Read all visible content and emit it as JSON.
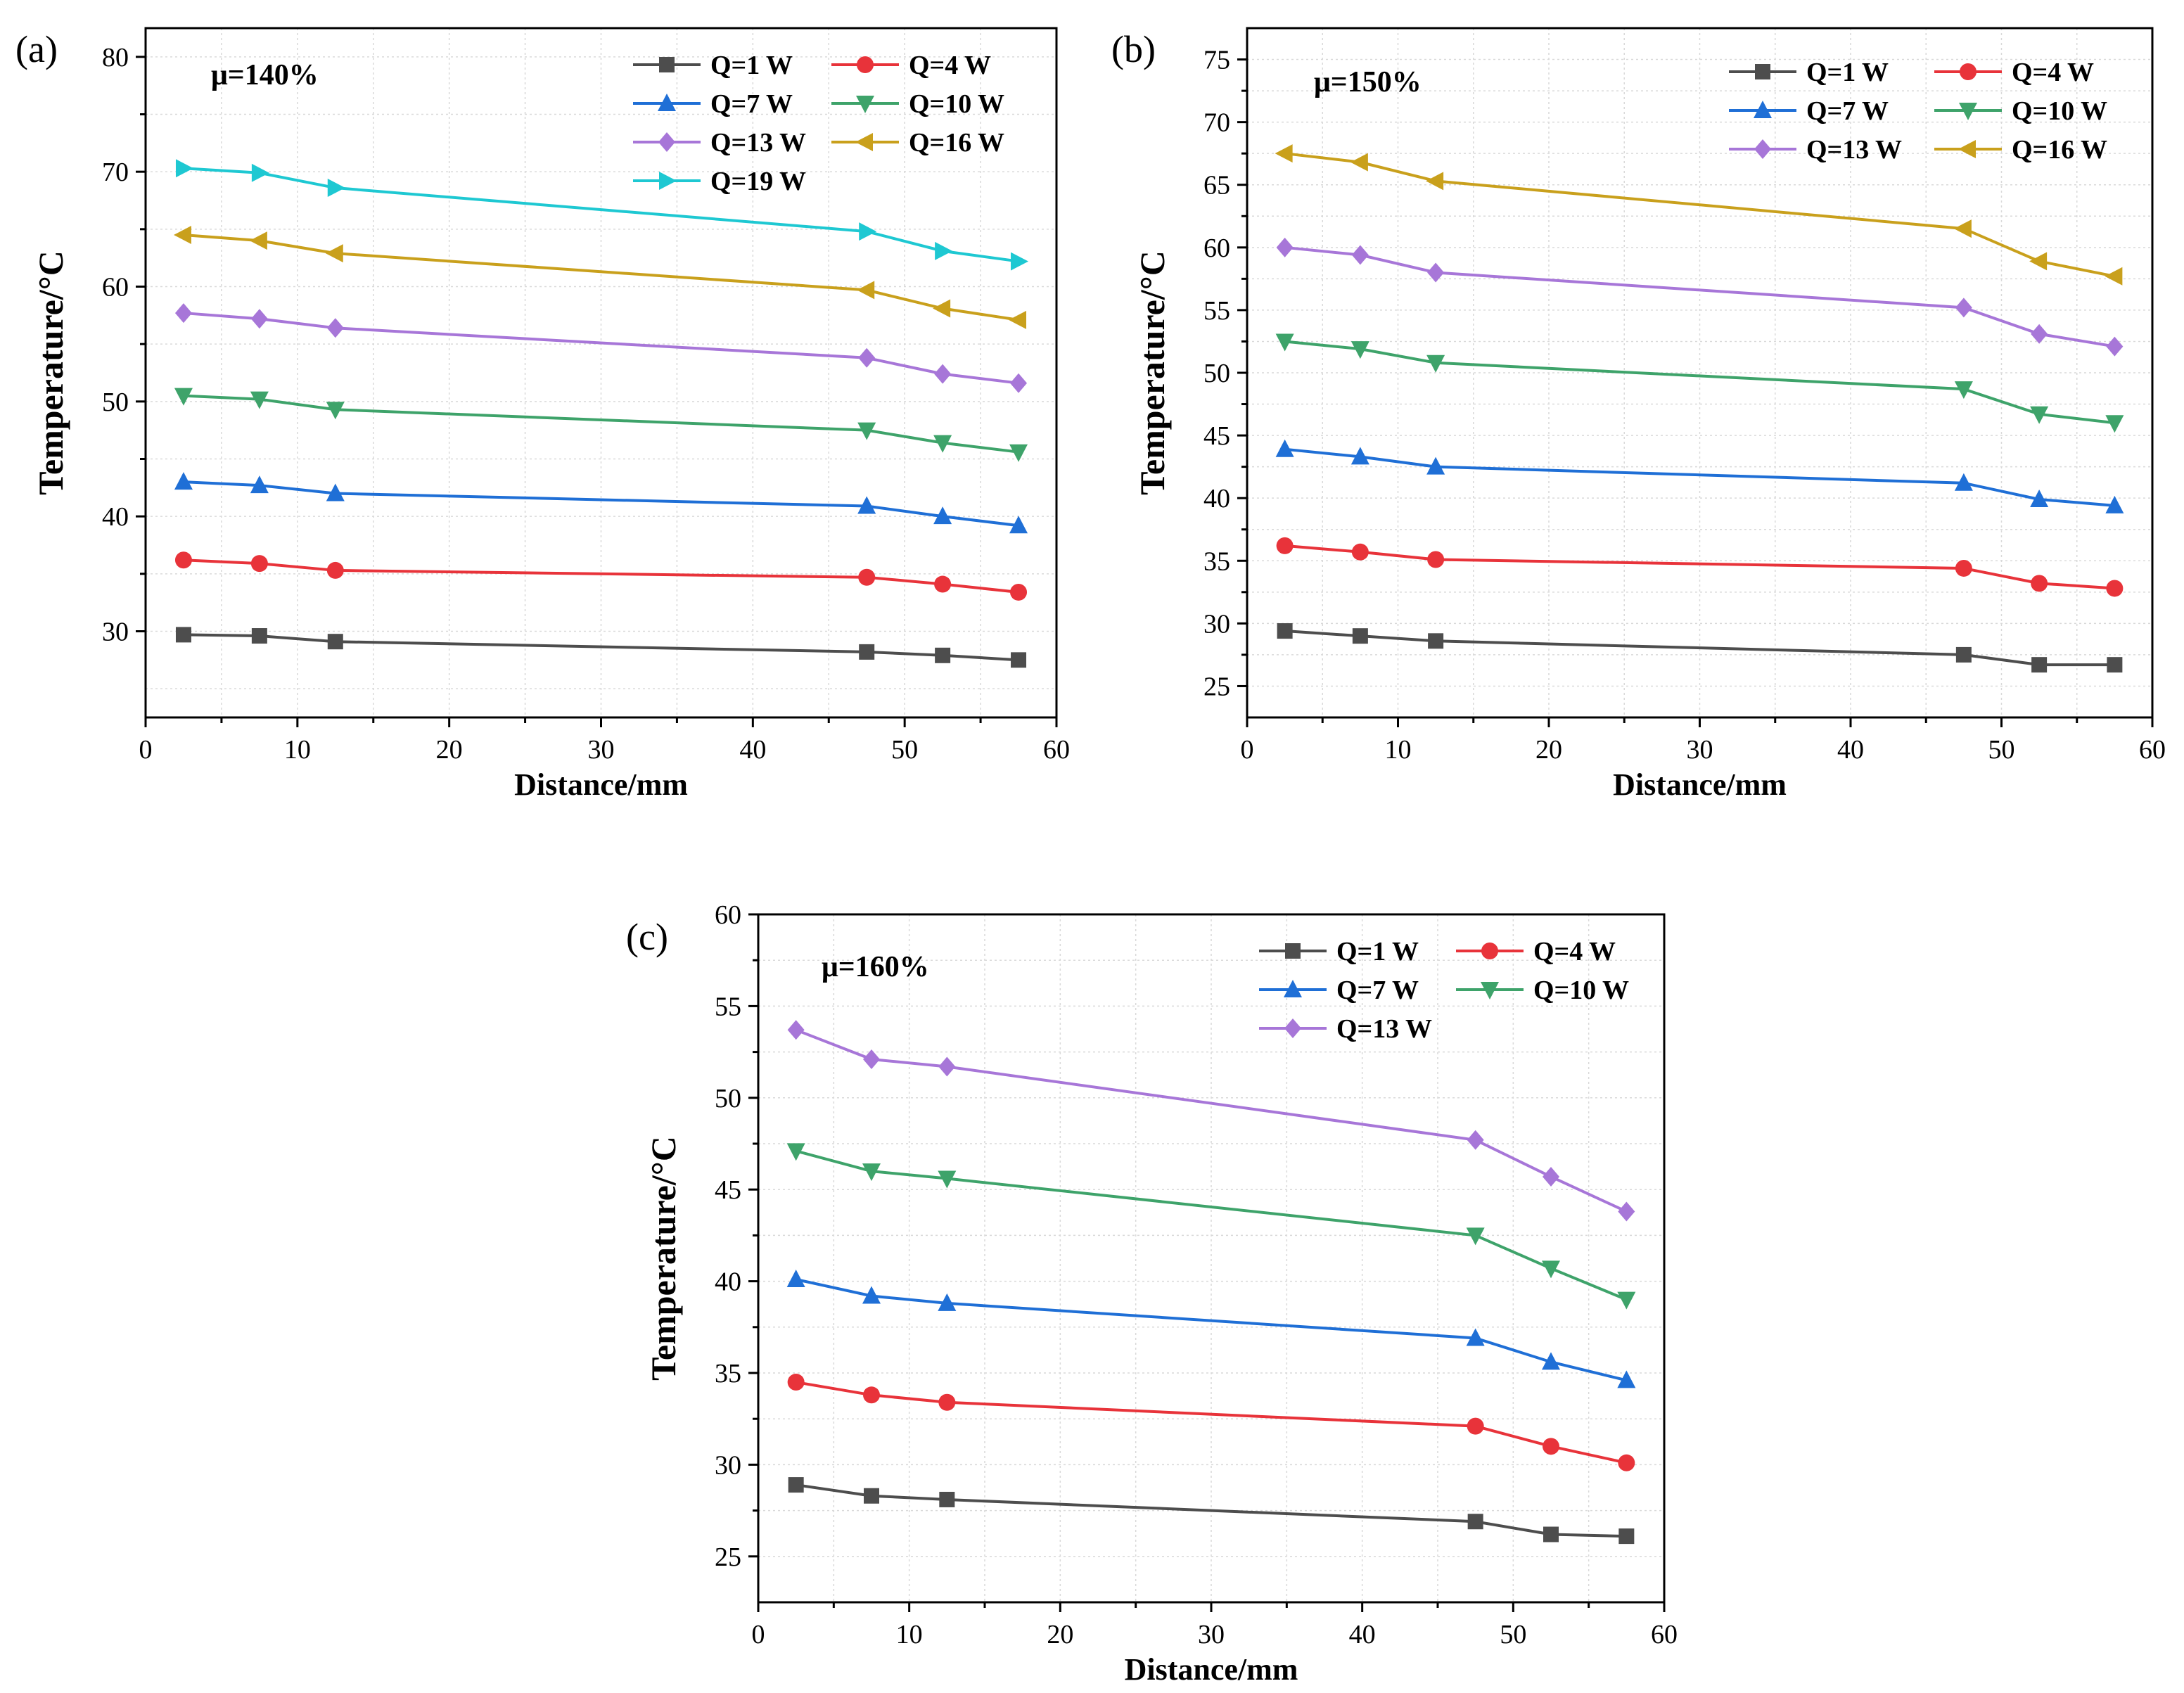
{
  "chart_data": [
    {
      "panel_label": "(a)",
      "type": "line",
      "annotation": "μ=140%",
      "xlabel": "Distance/mm",
      "ylabel": "Temperature/°C",
      "xlim": [
        0,
        60
      ],
      "ylim": [
        22.5,
        82.5
      ],
      "xticks": [
        "0",
        "10",
        "20",
        "30",
        "40",
        "50",
        "60"
      ],
      "yticks": [
        "30",
        "40",
        "50",
        "60",
        "70",
        "80"
      ],
      "grid": true,
      "legend_position": "top-right",
      "x": [
        2.5,
        7.5,
        12.5,
        47.5,
        52.5,
        57.5
      ],
      "series": [
        {
          "name": "Q=1 W",
          "color": "#4d4d4d",
          "marker": "square",
          "values": [
            29.7,
            29.6,
            29.1,
            28.2,
            27.9,
            27.5
          ]
        },
        {
          "name": "Q=4 W",
          "color": "#e8333a",
          "marker": "circle",
          "values": [
            36.2,
            35.9,
            35.3,
            34.7,
            34.1,
            33.4
          ]
        },
        {
          "name": "Q=7 W",
          "color": "#1f6fd6",
          "marker": "triangle-up",
          "values": [
            43.0,
            42.7,
            42.0,
            40.9,
            40.0,
            39.2
          ]
        },
        {
          "name": "Q=10 W",
          "color": "#3ea36a",
          "marker": "triangle-down",
          "values": [
            50.5,
            50.2,
            49.3,
            47.5,
            46.4,
            45.6
          ]
        },
        {
          "name": "Q=13 W",
          "color": "#a776d8",
          "marker": "diamond",
          "values": [
            57.7,
            57.2,
            56.4,
            53.8,
            52.4,
            51.6
          ]
        },
        {
          "name": "Q=16 W",
          "color": "#c9a01c",
          "marker": "triangle-left",
          "values": [
            64.5,
            64.0,
            62.9,
            59.7,
            58.1,
            57.1
          ]
        },
        {
          "name": "Q=19 W",
          "color": "#1ec8d2",
          "marker": "triangle-right",
          "values": [
            70.3,
            69.9,
            68.6,
            64.8,
            63.1,
            62.2
          ]
        }
      ]
    },
    {
      "panel_label": "(b)",
      "type": "line",
      "annotation": "μ=150%",
      "xlabel": "Distance/mm",
      "ylabel": "Temperature/°C",
      "xlim": [
        0,
        60
      ],
      "ylim": [
        22.5,
        77.5
      ],
      "xticks": [
        "0",
        "10",
        "20",
        "30",
        "40",
        "50",
        "60"
      ],
      "yticks": [
        "25",
        "30",
        "35",
        "40",
        "45",
        "50",
        "55",
        "60",
        "65",
        "70",
        "75"
      ],
      "grid": true,
      "legend_position": "top-right",
      "x": [
        2.5,
        7.5,
        12.5,
        47.5,
        52.5,
        57.5
      ],
      "series": [
        {
          "name": "Q=1 W",
          "color": "#4d4d4d",
          "marker": "square",
          "values": [
            29.4,
            29.0,
            28.6,
            27.5,
            26.7,
            26.7
          ]
        },
        {
          "name": "Q=4 W",
          "color": "#e8333a",
          "marker": "circle",
          "values": [
            36.2,
            35.7,
            35.1,
            34.4,
            33.2,
            32.8
          ]
        },
        {
          "name": "Q=7 W",
          "color": "#1f6fd6",
          "marker": "triangle-up",
          "values": [
            43.9,
            43.3,
            42.5,
            41.2,
            39.9,
            39.4
          ]
        },
        {
          "name": "Q=10 W",
          "color": "#3ea36a",
          "marker": "triangle-down",
          "values": [
            52.5,
            51.9,
            50.8,
            48.7,
            46.7,
            46.0
          ]
        },
        {
          "name": "Q=13 W",
          "color": "#a776d8",
          "marker": "diamond",
          "values": [
            60.0,
            59.4,
            58.0,
            55.2,
            53.1,
            52.1
          ]
        },
        {
          "name": "Q=16 W",
          "color": "#c9a01c",
          "marker": "triangle-left",
          "values": [
            67.5,
            66.8,
            65.3,
            61.5,
            58.9,
            57.7
          ]
        }
      ]
    },
    {
      "panel_label": "(c)",
      "type": "line",
      "annotation": "μ=160%",
      "xlabel": "Distance/mm",
      "ylabel": "Temperature/°C",
      "xlim": [
        0,
        60
      ],
      "ylim": [
        22.5,
        60
      ],
      "xticks": [
        "0",
        "10",
        "20",
        "30",
        "40",
        "50",
        "60"
      ],
      "yticks": [
        "25",
        "30",
        "35",
        "40",
        "45",
        "50",
        "55",
        "60"
      ],
      "grid": true,
      "legend_position": "top-right",
      "x": [
        2.5,
        7.5,
        12.5,
        47.5,
        52.5,
        57.5
      ],
      "series": [
        {
          "name": "Q=1 W",
          "color": "#4d4d4d",
          "marker": "square",
          "values": [
            28.9,
            28.3,
            28.1,
            26.9,
            26.2,
            26.1
          ]
        },
        {
          "name": "Q=4 W",
          "color": "#e8333a",
          "marker": "circle",
          "values": [
            34.5,
            33.8,
            33.4,
            32.1,
            31.0,
            30.1
          ]
        },
        {
          "name": "Q=7 W",
          "color": "#1f6fd6",
          "marker": "triangle-up",
          "values": [
            40.1,
            39.2,
            38.8,
            36.9,
            35.6,
            34.6
          ]
        },
        {
          "name": "Q=10 W",
          "color": "#3ea36a",
          "marker": "triangle-down",
          "values": [
            47.1,
            46.0,
            45.6,
            42.5,
            40.7,
            39.0
          ]
        },
        {
          "name": "Q=13 W",
          "color": "#a776d8",
          "marker": "diamond",
          "values": [
            53.7,
            52.1,
            51.7,
            47.7,
            45.7,
            43.8
          ]
        }
      ]
    }
  ]
}
